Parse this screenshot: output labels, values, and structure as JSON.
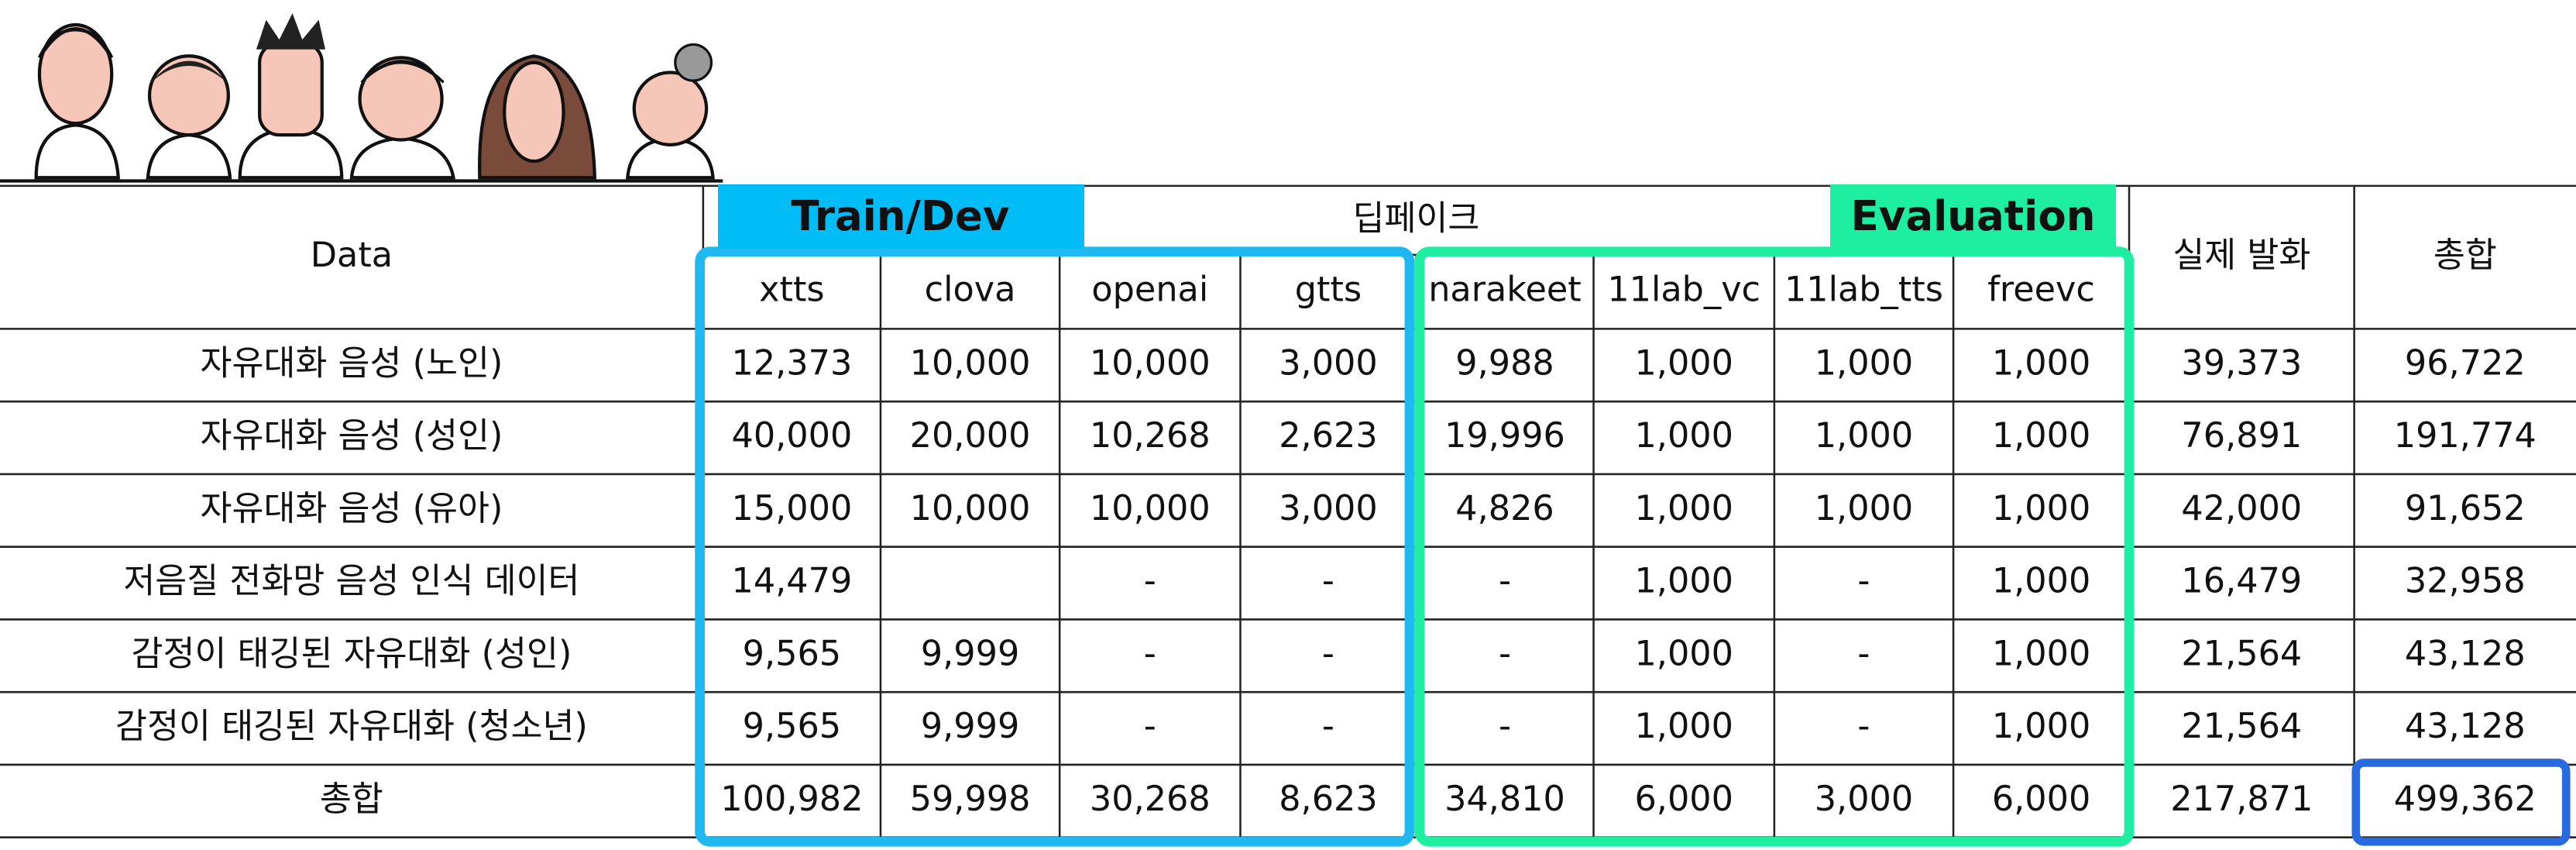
{
  "header": {
    "data": "Data",
    "group": "딥페이크",
    "train_dev": "Train/Dev",
    "evaluation": "Evaluation",
    "real": "실제 발화",
    "total": "총합",
    "models": [
      "xtts",
      "clova",
      "openai",
      "gtts",
      "narakeet",
      "11lab_vc",
      "11lab_tts",
      "freevc"
    ]
  },
  "rows": [
    [
      "자유대화 음성 (노인)",
      "12,373",
      "10,000",
      "10,000",
      "3,000",
      "9,988",
      "1,000",
      "1,000",
      "1,000",
      "39,373",
      "96,722"
    ],
    [
      "자유대화 음성 (성인)",
      "40,000",
      "20,000",
      "10,268",
      "2,623",
      "19,996",
      "1,000",
      "1,000",
      "1,000",
      "76,891",
      "191,774"
    ],
    [
      "자유대화 음성 (유아)",
      "15,000",
      "10,000",
      "10,000",
      "3,000",
      "4,826",
      "1,000",
      "1,000",
      "1,000",
      "42,000",
      "91,652"
    ],
    [
      "저음질 전화망 음성 인식 데이터",
      "14,479",
      null,
      "-",
      "-",
      "-",
      "1,000",
      "-",
      "1,000",
      "16,479",
      "32,958"
    ],
    [
      "감정이 태깅된 자유대화 (성인)",
      "9,565",
      "9,999",
      "-",
      "-",
      "-",
      "1,000",
      "-",
      "1,000",
      "21,564",
      "43,128"
    ],
    [
      "감정이 태깅된 자유대화 (청소년)",
      "9,565",
      "9,999",
      "-",
      "-",
      "-",
      "1,000",
      "-",
      "1,000",
      "21,564",
      "43,128"
    ],
    [
      "총합",
      "100,982",
      "59,998",
      "30,268",
      "8,623",
      "34,810",
      "6,000",
      "3,000",
      "6,000",
      "217,871",
      "499,362"
    ]
  ]
}
